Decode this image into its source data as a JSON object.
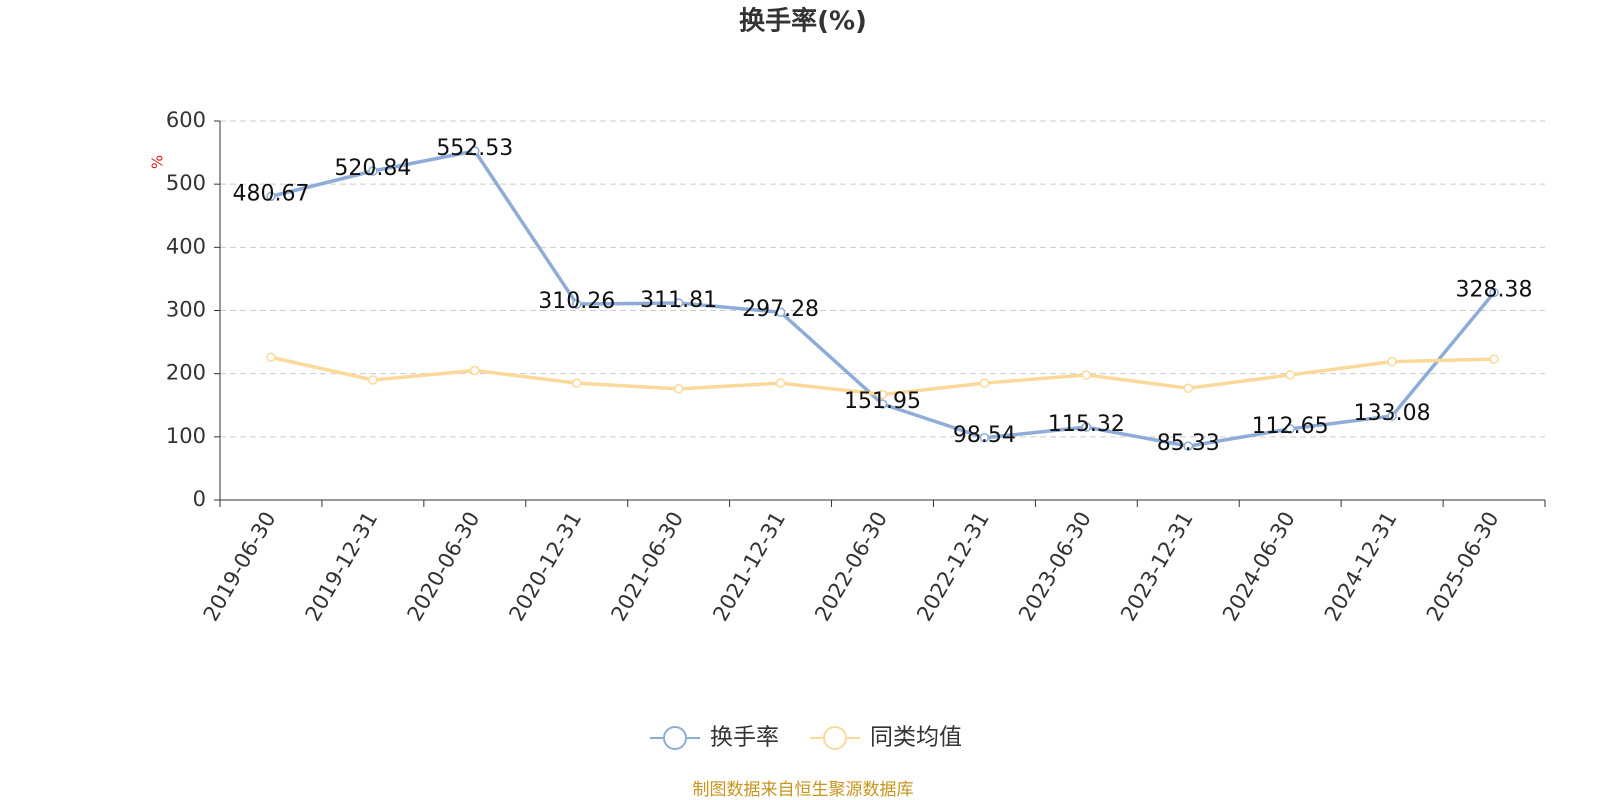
{
  "chart_data": {
    "type": "line",
    "title": "换手率(%)",
    "y_label": "%",
    "source": "制图数据来自恒生聚源数据库",
    "categories": [
      "2019-06-30",
      "2019-12-31",
      "2020-06-30",
      "2020-12-31",
      "2021-06-30",
      "2021-12-31",
      "2022-06-30",
      "2022-12-31",
      "2023-06-30",
      "2023-12-31",
      "2024-06-30",
      "2024-12-31",
      "2025-06-30"
    ],
    "series": [
      {
        "name": "换手率",
        "color": "#8eacd8",
        "show_labels": true,
        "values": [
          480.67,
          520.84,
          552.53,
          310.26,
          311.81,
          297.28,
          151.95,
          98.54,
          115.32,
          85.33,
          112.65,
          133.08,
          328.38
        ]
      },
      {
        "name": "同类均值",
        "color": "#fbd99a",
        "show_labels": false,
        "values": [
          226,
          190,
          205,
          185,
          176,
          185,
          167,
          185,
          198,
          177,
          198,
          219,
          223
        ]
      }
    ],
    "ylim": [
      0,
      600
    ],
    "yticks": [
      0,
      100,
      200,
      300,
      400,
      500,
      600
    ],
    "grid": true
  }
}
